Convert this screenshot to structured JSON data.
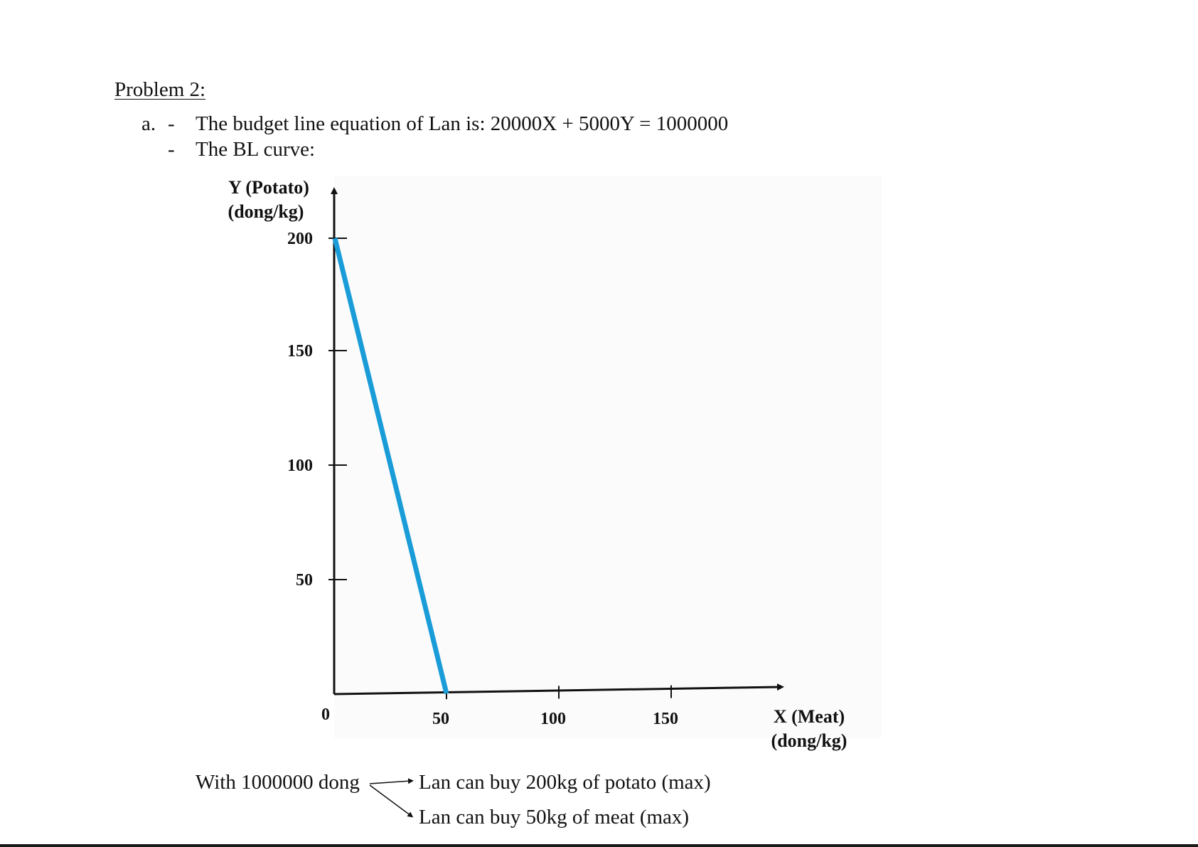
{
  "heading": "Problem 2:",
  "part_a": {
    "label": "a.",
    "bullet": "-",
    "line1": "The budget line equation of Lan is: 20000X + 5000Y = 1000000",
    "line2": "The BL curve:"
  },
  "chart_data": {
    "type": "line",
    "ylabel_line1": "Y (Potato)",
    "ylabel_line2": "(dong/kg)",
    "xlabel_line1": "X (Meat)",
    "xlabel_line2": "(dong/kg)",
    "origin_label": "0",
    "x_ticks": [
      50,
      100,
      150
    ],
    "y_ticks": [
      50,
      100,
      150,
      200
    ],
    "series": [
      {
        "points": [
          [
            0,
            200
          ],
          [
            50,
            0
          ]
        ],
        "color": "#1a9cd8"
      }
    ],
    "axis_color": "#111111",
    "grid": false
  },
  "note": {
    "prefix": "With 1000000 dong",
    "result1": "Lan can buy 200kg of potato (max)",
    "result2": "Lan can buy 50kg of meat (max)"
  }
}
